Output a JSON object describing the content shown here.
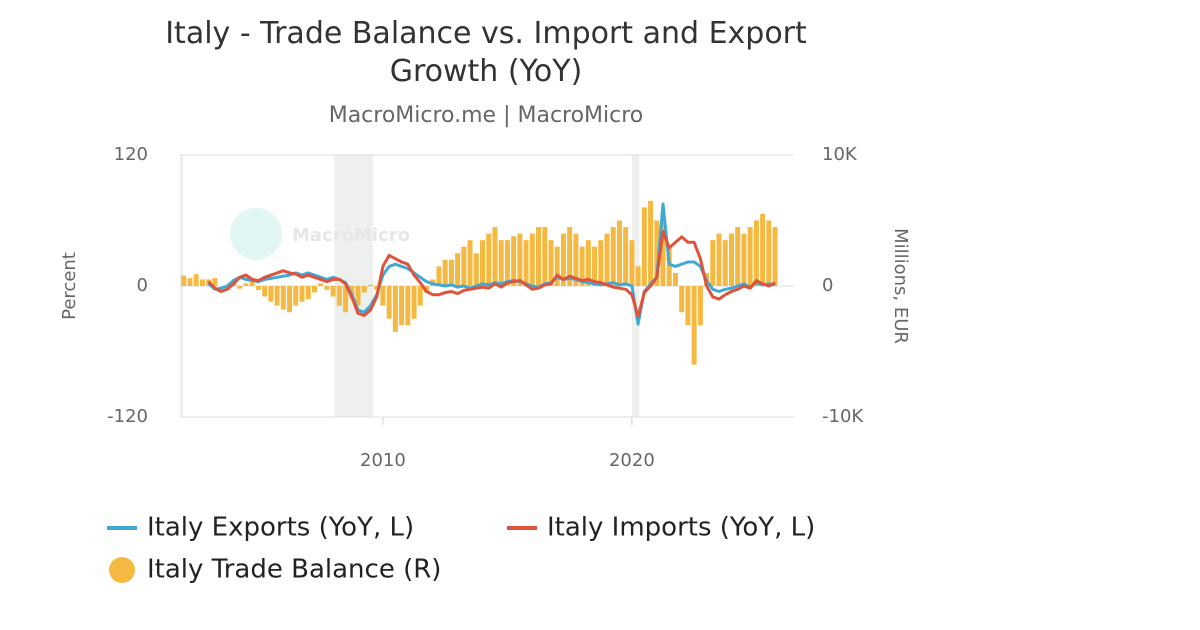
{
  "chart_data": {
    "type": "bar-line",
    "title": "Italy - Trade Balance vs. Import and Export Growth (YoY)",
    "subtitle": "MacroMicro.me | MacroMicro",
    "watermark": "MacroMicro",
    "ylabel": "Percent",
    "y2label": "Millions, EUR",
    "xlim": [
      2001.85,
      2026.35
    ],
    "xticks": [
      2010,
      2020
    ],
    "ylim": [
      -120,
      120
    ],
    "yticks": [
      -120,
      0,
      120
    ],
    "y2lim": [
      -10000,
      10000
    ],
    "y2ticks": [
      {
        "value": -10000,
        "label": "-10K"
      },
      {
        "value": 0,
        "label": "0"
      },
      {
        "value": 10000,
        "label": "10K"
      }
    ],
    "grid": true,
    "recessions": [
      [
        2008.05,
        2009.6
      ],
      [
        2020.0,
        2020.3
      ]
    ],
    "x": [
      2002,
      2002.25,
      2002.5,
      2002.75,
      2003,
      2003.25,
      2003.5,
      2003.75,
      2004,
      2004.25,
      2004.5,
      2004.75,
      2005,
      2005.25,
      2005.5,
      2005.75,
      2006,
      2006.25,
      2006.5,
      2006.75,
      2007,
      2007.25,
      2007.5,
      2007.75,
      2008,
      2008.25,
      2008.5,
      2008.75,
      2009,
      2009.25,
      2009.5,
      2009.75,
      2010,
      2010.25,
      2010.5,
      2010.75,
      2011,
      2011.25,
      2011.5,
      2011.75,
      2012,
      2012.25,
      2012.5,
      2012.75,
      2013,
      2013.25,
      2013.5,
      2013.75,
      2014,
      2014.25,
      2014.5,
      2014.75,
      2015,
      2015.25,
      2015.5,
      2015.75,
      2016,
      2016.25,
      2016.5,
      2016.75,
      2017,
      2017.25,
      2017.5,
      2017.75,
      2018,
      2018.25,
      2018.5,
      2018.75,
      2019,
      2019.25,
      2019.5,
      2019.75,
      2020,
      2020.25,
      2020.5,
      2020.75,
      2021,
      2021.25,
      2021.5,
      2021.75,
      2022,
      2022.25,
      2022.5,
      2022.75,
      2023,
      2023.25,
      2023.5,
      2023.75,
      2024,
      2024.25,
      2024.5,
      2024.75,
      2025,
      2025.25,
      2025.5,
      2025.75
    ],
    "series": [
      {
        "name": "Italy Exports (YoY, L)",
        "color": "#3fa9d5",
        "kind": "line",
        "axis": "y",
        "values": [
          null,
          null,
          null,
          null,
          2,
          -3,
          -2,
          0,
          5,
          8,
          6,
          5,
          4,
          6,
          7,
          8,
          9,
          10,
          12,
          10,
          12,
          10,
          8,
          6,
          8,
          6,
          3,
          -8,
          -22,
          -24,
          -18,
          -8,
          10,
          18,
          20,
          18,
          16,
          12,
          8,
          4,
          2,
          1,
          0,
          1,
          -1,
          0,
          -2,
          0,
          2,
          1,
          3,
          2,
          4,
          5,
          4,
          2,
          0,
          -1,
          2,
          3,
          8,
          6,
          7,
          6,
          4,
          3,
          2,
          1,
          2,
          3,
          1,
          2,
          0,
          -35,
          -5,
          2,
          8,
          75,
          20,
          18,
          20,
          22,
          22,
          18,
          5,
          -3,
          -5,
          -3,
          -2,
          0,
          2,
          -1,
          3,
          1,
          2,
          1
        ]
      },
      {
        "name": "Italy Imports (YoY, L)",
        "color": "#e0533a",
        "kind": "line",
        "axis": "y",
        "values": [
          null,
          null,
          null,
          null,
          4,
          -2,
          -5,
          -3,
          2,
          8,
          10,
          6,
          5,
          8,
          10,
          12,
          14,
          12,
          11,
          8,
          10,
          8,
          6,
          4,
          6,
          6,
          2,
          -10,
          -25,
          -27,
          -22,
          -10,
          18,
          28,
          25,
          22,
          20,
          10,
          3,
          -5,
          -8,
          -8,
          -6,
          -5,
          -7,
          -4,
          -3,
          -2,
          -1,
          -2,
          2,
          -1,
          3,
          4,
          5,
          1,
          -3,
          -2,
          1,
          2,
          10,
          6,
          9,
          7,
          5,
          6,
          4,
          3,
          1,
          -1,
          -2,
          -3,
          -8,
          -28,
          -6,
          0,
          8,
          50,
          35,
          40,
          45,
          40,
          40,
          25,
          0,
          -10,
          -12,
          -8,
          -5,
          -3,
          0,
          -2,
          5,
          2,
          0,
          3
        ]
      },
      {
        "name": "Italy Trade Balance (R)",
        "color": "#f5b942",
        "kind": "bar",
        "axis": "y2",
        "values": [
          800,
          600,
          900,
          500,
          500,
          600,
          0,
          -300,
          300,
          -200,
          200,
          500,
          -300,
          -800,
          -1200,
          -1500,
          -1800,
          -2000,
          -1500,
          -1200,
          -1000,
          -500,
          200,
          -300,
          -800,
          -1500,
          -2000,
          -1000,
          -1500,
          -500,
          100,
          -300,
          -1500,
          -2500,
          -3500,
          -3000,
          -3000,
          -2500,
          -1500,
          -500,
          500,
          1500,
          2000,
          2000,
          2500,
          3000,
          3500,
          2500,
          3500,
          4000,
          4500,
          3500,
          3500,
          3800,
          4000,
          3500,
          4000,
          4500,
          4500,
          3500,
          3000,
          4000,
          4500,
          4000,
          3000,
          3500,
          3000,
          3500,
          4000,
          4500,
          5000,
          4500,
          3500,
          1500,
          6000,
          6500,
          5000,
          5500,
          3000,
          1000,
          -2000,
          -3000,
          -6000,
          -3000,
          1000,
          3500,
          4000,
          3500,
          4000,
          4500,
          4000,
          4500,
          5000,
          5500,
          5000,
          4500
        ]
      }
    ]
  }
}
